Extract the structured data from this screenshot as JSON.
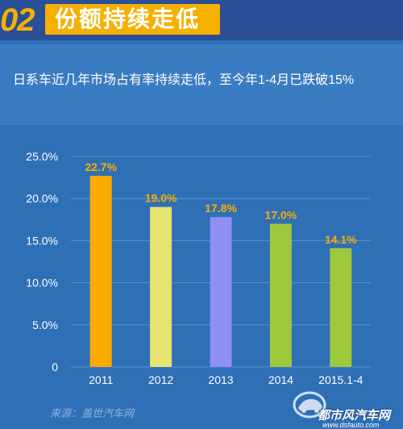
{
  "header": {
    "number": "02",
    "title": "份额持续走低"
  },
  "subtitle": "日系车近几年市场占有率持续走低，至今年1-4月已跌破15%",
  "chart_data": {
    "type": "bar",
    "categories": [
      "2011",
      "2012",
      "2013",
      "2014",
      "2015.1-4"
    ],
    "values": [
      22.7,
      19.0,
      17.8,
      17.0,
      14.1
    ],
    "value_labels": [
      "22.7%",
      "19.0%",
      "17.8%",
      "17.0%",
      "14.1%"
    ],
    "bar_colors": [
      "#fbab00",
      "#e6e46e",
      "#8f8ff5",
      "#9fc93c",
      "#9fc93c"
    ],
    "ylim": [
      0,
      25
    ],
    "yticks": [
      0,
      5,
      10,
      15,
      20,
      25
    ],
    "ytick_labels": [
      "0",
      "5.0%",
      "10.0%",
      "15.0%",
      "20.0%",
      "25.0%"
    ],
    "grid": true,
    "title": "",
    "xlabel": "",
    "ylabel": ""
  },
  "footer": {
    "source": "来源：盖世汽车网"
  },
  "watermark": {
    "name": "都市风汽车网",
    "url": "www.dsfauto.com"
  },
  "colors": {
    "background": "#2f6fb6",
    "accent": "#f6b000",
    "label": "#f6b000"
  }
}
